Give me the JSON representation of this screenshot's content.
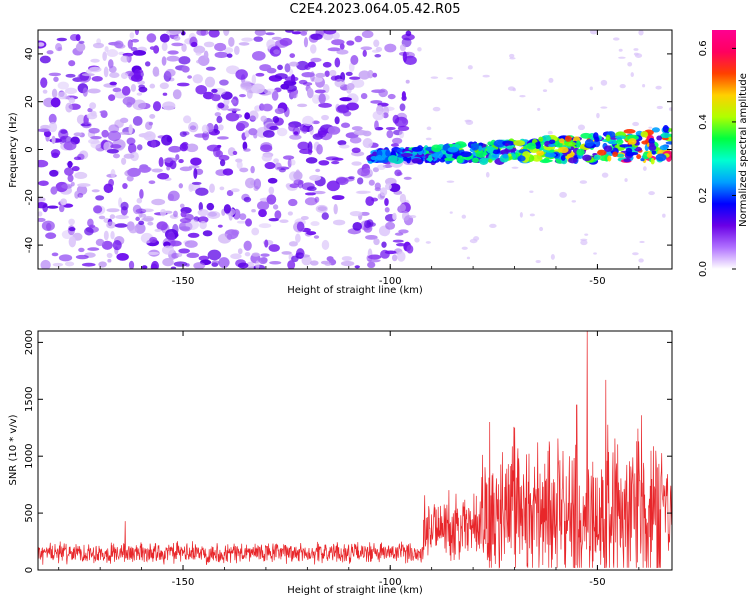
{
  "title": "C2E4.2023.064.05.42.R05",
  "colors": {
    "snr_line": "#e8262a",
    "frame": "#000000",
    "purple_dark": "#5a00e6",
    "purple_light": "#c9a8f5"
  },
  "chart_data": [
    {
      "type": "heatmap",
      "name": "spectrogram",
      "xlabel": "Height of straight line (km)",
      "ylabel": "Frequency (Hz)",
      "xlim": [
        -185,
        -32
      ],
      "ylim": [
        -50,
        50
      ],
      "x_ticks": [
        -150,
        -100,
        -50
      ],
      "x_tick_labels": [
        "-150",
        "-100",
        "-50"
      ],
      "y_ticks": [
        -40,
        -20,
        0,
        20,
        40
      ],
      "y_tick_labels": [
        "-40",
        "-20",
        "0",
        "20",
        "40"
      ],
      "noise_region_x": [
        -185,
        -95
      ],
      "signal_band": {
        "x": [
          -105,
          -32
        ],
        "center_freq_start": -3,
        "center_freq_end": 2
      },
      "colorbar": {
        "label": "Normalized spectral amplitude",
        "range": [
          0.0,
          0.65
        ],
        "ticks": [
          0.0,
          0.2,
          0.4,
          0.6
        ],
        "tick_labels": [
          "0.0",
          "0.2",
          "0.4",
          "0.6"
        ],
        "stops": [
          "#ffffff",
          "#b070ff",
          "#6a00e6",
          "#0000ff",
          "#00a0ff",
          "#00ffd0",
          "#00ff40",
          "#b0ff00",
          "#ffd000",
          "#ff4000",
          "#ff0060",
          "#ff0090"
        ]
      }
    },
    {
      "type": "line",
      "name": "snr",
      "xlabel": "Height of straight line (km)",
      "ylabel": "SNR (10 * v/v)",
      "xlim": [
        -185,
        -32
      ],
      "ylim": [
        0,
        2100
      ],
      "x_ticks": [
        -150,
        -100,
        -50
      ],
      "x_tick_labels": [
        "-150",
        "-100",
        "-50"
      ],
      "y_ticks": [
        0,
        500,
        1000,
        1500,
        2000
      ],
      "y_tick_labels": [
        "0",
        "500",
        "1000",
        "1500",
        "2000"
      ],
      "segments": [
        {
          "x": [
            -185,
            -92
          ],
          "baseline": 150,
          "spread": 110
        },
        {
          "x": [
            -92,
            -78
          ],
          "baseline": 350,
          "spread": 350
        },
        {
          "x": [
            -78,
            -32
          ],
          "baseline": 450,
          "spread": 700
        }
      ],
      "peaks": [
        {
          "x": -52.5,
          "y": 2100
        },
        {
          "x": -48,
          "y": 1670
        },
        {
          "x": -76,
          "y": 1300
        },
        {
          "x": -70,
          "y": 1250
        },
        {
          "x": -55,
          "y": 1450
        },
        {
          "x": -40,
          "y": 1130
        },
        {
          "x": -164,
          "y": 430
        }
      ]
    }
  ]
}
